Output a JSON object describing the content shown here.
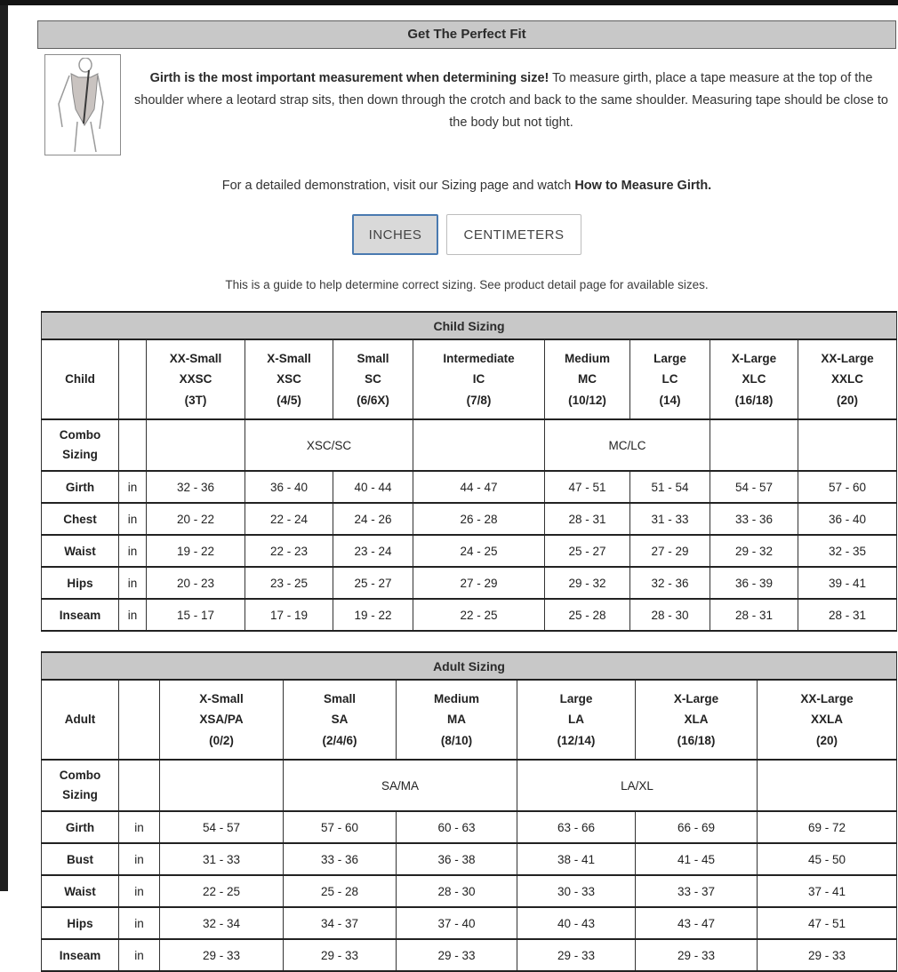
{
  "page": {
    "title_bar": "Get The Perfect Fit",
    "intro_bold": "Girth is the most important measurement when determining size!",
    "intro_rest": " To measure girth, place a tape measure at the top of the shoulder where a leotard strap sits, then down through the crotch and back to the same shoulder. Measuring tape should be close to the body but not tight.",
    "demo_prefix": "For a detailed demonstration, visit our Sizing page and watch ",
    "demo_bold": "How to Measure Girth.",
    "note": "This is a guide to help determine correct sizing. See product detail page for available sizes.",
    "figure_alt": "leotard-girth-diagram"
  },
  "buttons": {
    "inches": "INCHES",
    "centimeters": "CENTIMETERS"
  },
  "colors": {
    "accent_blue": "#4a7ab0",
    "bar_gray": "#c8c8c8",
    "border_dark": "#222222"
  },
  "child_table": {
    "title": "Child Sizing",
    "row_label": "Child",
    "unit": "in",
    "columns": [
      {
        "lines": [
          "XX-Small",
          "XXSC",
          "(3T)"
        ]
      },
      {
        "lines": [
          "X-Small",
          "XSC",
          "(4/5)"
        ]
      },
      {
        "lines": [
          "Small",
          "SC",
          "(6/6X)"
        ]
      },
      {
        "lines": [
          "Intermediate",
          "IC",
          "(7/8)"
        ]
      },
      {
        "lines": [
          "Medium",
          "MC",
          "(10/12)"
        ]
      },
      {
        "lines": [
          "Large",
          "LC",
          "(14)"
        ]
      },
      {
        "lines": [
          "X-Large",
          "XLC",
          "(16/18)"
        ]
      },
      {
        "lines": [
          "XX-Large",
          "XXLC",
          "(20)"
        ]
      }
    ],
    "combo_label": [
      "Combo",
      "Sizing"
    ],
    "combo_cells": [
      {
        "text": "",
        "span": 1
      },
      {
        "text": "XSC/SC",
        "span": 2
      },
      {
        "text": "",
        "span": 1
      },
      {
        "text": "MC/LC",
        "span": 2
      },
      {
        "text": "",
        "span": 1
      },
      {
        "text": "",
        "span": 1
      }
    ],
    "rows": [
      {
        "label": "Girth",
        "values": [
          "32 - 36",
          "36 - 40",
          "40 - 44",
          "44 - 47",
          "47 - 51",
          "51 - 54",
          "54 - 57",
          "57 - 60"
        ]
      },
      {
        "label": "Chest",
        "values": [
          "20 - 22",
          "22 - 24",
          "24 - 26",
          "26 - 28",
          "28 - 31",
          "31 - 33",
          "33 - 36",
          "36 - 40"
        ]
      },
      {
        "label": "Waist",
        "values": [
          "19 - 22",
          "22 - 23",
          "23 - 24",
          "24 - 25",
          "25 - 27",
          "27 - 29",
          "29 - 32",
          "32 - 35"
        ]
      },
      {
        "label": "Hips",
        "values": [
          "20 - 23",
          "23 - 25",
          "25 - 27",
          "27 - 29",
          "29 - 32",
          "32 - 36",
          "36 - 39",
          "39 - 41"
        ]
      },
      {
        "label": "Inseam",
        "values": [
          "15 - 17",
          "17 - 19",
          "19 - 22",
          "22 - 25",
          "25 - 28",
          "28 - 30",
          "28 - 31",
          "28 - 31"
        ]
      }
    ]
  },
  "adult_table": {
    "title": "Adult Sizing",
    "row_label": "Adult",
    "unit": "in",
    "columns": [
      {
        "lines": [
          "X-Small",
          "XSA/PA",
          "(0/2)"
        ]
      },
      {
        "lines": [
          "Small",
          "SA",
          "(2/4/6)"
        ]
      },
      {
        "lines": [
          "Medium",
          "MA",
          "(8/10)"
        ]
      },
      {
        "lines": [
          "Large",
          "LA",
          "(12/14)"
        ]
      },
      {
        "lines": [
          "X-Large",
          "XLA",
          "(16/18)"
        ]
      },
      {
        "lines": [
          "XX-Large",
          "XXLA",
          "(20)"
        ]
      }
    ],
    "combo_label": [
      "Combo",
      "Sizing"
    ],
    "combo_cells": [
      {
        "text": "",
        "span": 1
      },
      {
        "text": "SA/MA",
        "span": 2
      },
      {
        "text": "LA/XL",
        "span": 2
      },
      {
        "text": "",
        "span": 1
      }
    ],
    "rows": [
      {
        "label": "Girth",
        "values": [
          "54 - 57",
          "57 - 60",
          "60 - 63",
          "63 - 66",
          "66 - 69",
          "69 - 72"
        ]
      },
      {
        "label": "Bust",
        "values": [
          "31 - 33",
          "33 - 36",
          "36 - 38",
          "38 - 41",
          "41 - 45",
          "45 - 50"
        ]
      },
      {
        "label": "Waist",
        "values": [
          "22 - 25",
          "25 - 28",
          "28 - 30",
          "30 - 33",
          "33 - 37",
          "37 - 41"
        ]
      },
      {
        "label": "Hips",
        "values": [
          "32 - 34",
          "34 - 37",
          "37 - 40",
          "40 - 43",
          "43 - 47",
          "47 - 51"
        ]
      },
      {
        "label": "Inseam",
        "values": [
          "29 - 33",
          "29 - 33",
          "29 - 33",
          "29 - 33",
          "29 - 33",
          "29 - 33"
        ]
      }
    ]
  }
}
